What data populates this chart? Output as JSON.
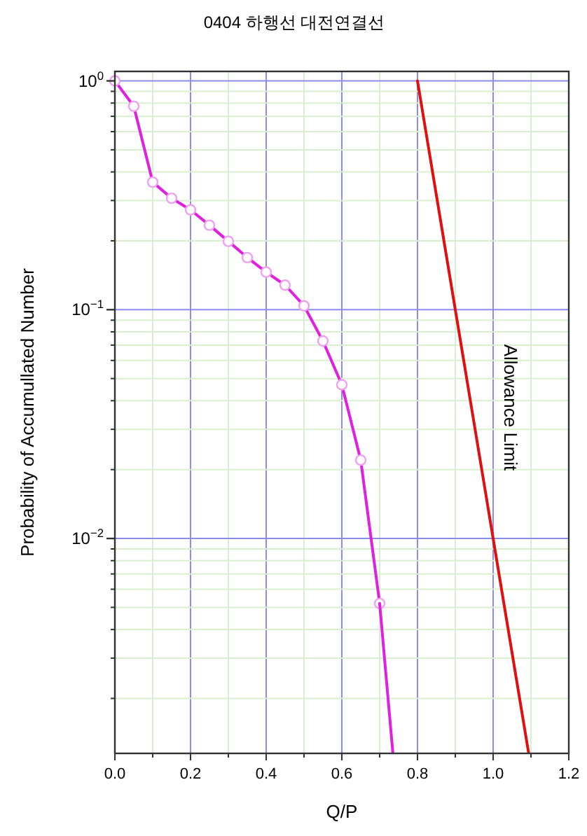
{
  "chart_data": {
    "type": "line",
    "title": "0404 하행선 대전연결선",
    "xlabel": "Q/P",
    "ylabel": "Probability of Accumullated Number",
    "log": "y",
    "grid": true,
    "xlim": [
      0,
      1.2
    ],
    "ylim": [
      0.00115,
      1.1
    ],
    "xticks": [
      {
        "value": 0,
        "label": "0.0"
      },
      {
        "value": 0.2,
        "label": "0.2"
      },
      {
        "value": 0.4,
        "label": "0.4"
      },
      {
        "value": 0.6,
        "label": "0.6"
      },
      {
        "value": 0.8,
        "label": "0.8"
      },
      {
        "value": 1.0,
        "label": "1.0"
      },
      {
        "value": 1.2,
        "label": "1.2"
      }
    ],
    "yticks": [
      {
        "value": 0.01,
        "label": "10$^{−2}$"
      },
      {
        "value": 0.1,
        "label": "10$^{−1}$"
      },
      {
        "value": 1,
        "label": "10$^{0}$"
      }
    ],
    "series": [
      {
        "color": "#e020e0",
        "marker": "circle",
        "x": [
          0,
          0.05,
          0.1,
          0.15,
          0.2,
          0.25,
          0.3,
          0.35,
          0.4,
          0.45,
          0.5,
          0.55,
          0.6,
          0.65,
          0.7
        ],
        "values": [
          1.0,
          0.775,
          0.361,
          0.307,
          0.273,
          0.234,
          0.199,
          0.169,
          0.146,
          0.128,
          0.104,
          0.073,
          0.047,
          0.022,
          0.0052
        ]
      },
      {
        "color": "#e020e0",
        "marker": "none",
        "x": [
          0.7,
          0.735
        ],
        "values": [
          0.0052,
          0.00115
        ]
      },
      {
        "color": "#e01010",
        "marker": "none",
        "x": [
          0.8,
          0.9,
          1.0,
          1.094
        ],
        "values": [
          1.0,
          0.1,
          0.01,
          0.00115
        ]
      }
    ],
    "annotations": [
      "Allowance Limit"
    ]
  }
}
